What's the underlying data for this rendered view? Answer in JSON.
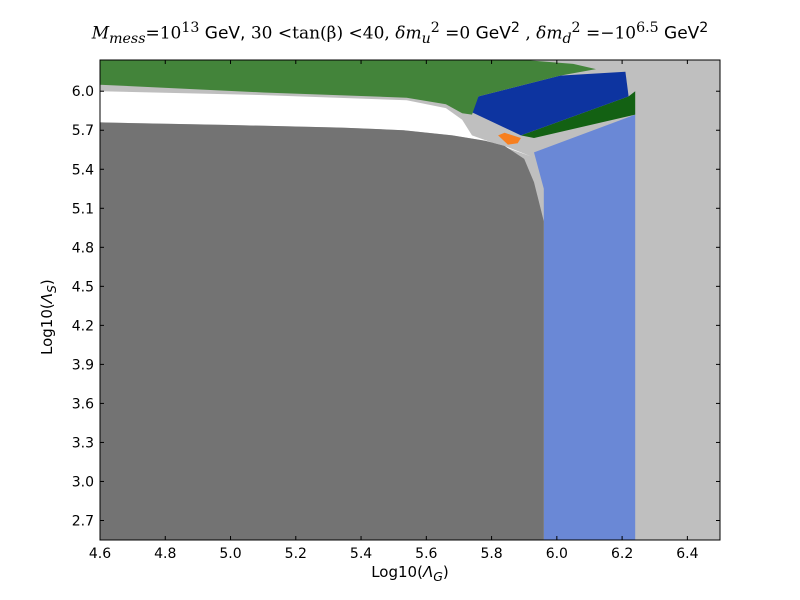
{
  "chart_data": {
    "type": "area",
    "title": {
      "text": "M_mess =10^13  GeV, 30 <tan(β) <40, δm_u^2 =0 GeV^2 , δm_d^2 =−10^6.5  GeV^2",
      "parts": {
        "m_mess_symbol": "M",
        "m_mess_sub": "mess",
        "eq1": "=10",
        "exp1": "13",
        "gev1": "GeV,",
        "tan_part": "30 <tan(β) <40,",
        "dmu_symbol": "δm",
        "dmu_sub": "u",
        "dmu_sup": "2",
        "eq2": "=0",
        "gev2": "GeV",
        "gev2_sup": "2",
        "comma": ",",
        "dmd_symbol": "δm",
        "dmd_sub": "d",
        "dmd_sup": "2",
        "eq3": "=−10",
        "exp3": "6.5",
        "gev3": "GeV",
        "gev3_sup": "2"
      }
    },
    "xlabel": {
      "prefix": "Log10(",
      "symbol": "Λ",
      "sub": "G",
      "suffix": ")"
    },
    "ylabel": {
      "prefix": "Log10(",
      "symbol": "Λ",
      "sub": "S",
      "suffix": ")"
    },
    "xlim": [
      4.6,
      6.5
    ],
    "ylim": [
      2.55,
      6.24
    ],
    "xticks": [
      "4.6",
      "4.8",
      "5.0",
      "5.2",
      "5.4",
      "5.6",
      "5.8",
      "6.0",
      "6.2",
      "6.4"
    ],
    "yticks": [
      "2.7",
      "3.0",
      "3.3",
      "3.6",
      "3.9",
      "4.2",
      "4.5",
      "4.8",
      "5.1",
      "5.4",
      "5.7",
      "6.0"
    ],
    "grid": false,
    "colors": {
      "background": "#bfbfbf",
      "dark_gray": "#737373",
      "white": "#ffffff",
      "green": "#43843a",
      "blue": "#0d34a0",
      "dark_green": "#136113",
      "orange": "#f77f1f",
      "light_blue": "#6a88d6"
    },
    "regions": [
      {
        "color": "light_blue",
        "boundary": [
          [
            5.96,
            2.55
          ],
          [
            5.96,
            5.25
          ],
          [
            5.93,
            5.53
          ],
          [
            6.24,
            5.82
          ],
          [
            6.24,
            2.55
          ]
        ]
      },
      {
        "color": "dark_green",
        "boundary": [
          [
            5.89,
            5.66
          ],
          [
            6.22,
            5.96
          ],
          [
            6.24,
            6.0
          ],
          [
            6.24,
            5.82
          ],
          [
            5.93,
            5.64
          ]
        ]
      },
      {
        "color": "blue",
        "boundary": [
          [
            5.73,
            5.85
          ],
          [
            5.76,
            5.96
          ],
          [
            6.01,
            6.12
          ],
          [
            6.21,
            6.15
          ],
          [
            6.22,
            5.96
          ],
          [
            5.89,
            5.66
          ]
        ]
      },
      {
        "color": "green",
        "boundary": [
          [
            4.6,
            6.24
          ],
          [
            4.6,
            6.05
          ],
          [
            5.1,
            5.99
          ],
          [
            5.54,
            5.95
          ],
          [
            5.66,
            5.9
          ],
          [
            5.71,
            5.83
          ],
          [
            5.74,
            5.82
          ],
          [
            5.76,
            5.96
          ],
          [
            6.01,
            6.12
          ],
          [
            6.12,
            6.17
          ],
          [
            6.05,
            6.21
          ],
          [
            5.9,
            6.24
          ]
        ]
      },
      {
        "color": "white",
        "boundary": [
          [
            4.6,
            6.0
          ],
          [
            4.6,
            5.76
          ],
          [
            5.0,
            5.74
          ],
          [
            5.34,
            5.72
          ],
          [
            5.53,
            5.7
          ],
          [
            5.68,
            5.66
          ],
          [
            5.78,
            5.62
          ],
          [
            5.84,
            5.58
          ],
          [
            5.92,
            5.5
          ],
          [
            5.74,
            5.66
          ],
          [
            5.71,
            5.78
          ],
          [
            5.66,
            5.87
          ],
          [
            5.54,
            5.93
          ],
          [
            5.1,
            5.97
          ]
        ]
      },
      {
        "color": "dark_gray",
        "boundary": [
          [
            4.6,
            2.55
          ],
          [
            4.6,
            5.76
          ],
          [
            5.0,
            5.74
          ],
          [
            5.34,
            5.72
          ],
          [
            5.53,
            5.7
          ],
          [
            5.68,
            5.66
          ],
          [
            5.78,
            5.62
          ],
          [
            5.84,
            5.58
          ],
          [
            5.9,
            5.48
          ],
          [
            5.93,
            5.3
          ],
          [
            5.96,
            5.0
          ],
          [
            5.96,
            2.55
          ]
        ]
      },
      {
        "color": "orange",
        "boundary": [
          [
            5.82,
            5.66
          ],
          [
            5.84,
            5.68
          ],
          [
            5.89,
            5.64
          ],
          [
            5.88,
            5.6
          ],
          [
            5.85,
            5.59
          ]
        ]
      }
    ]
  }
}
